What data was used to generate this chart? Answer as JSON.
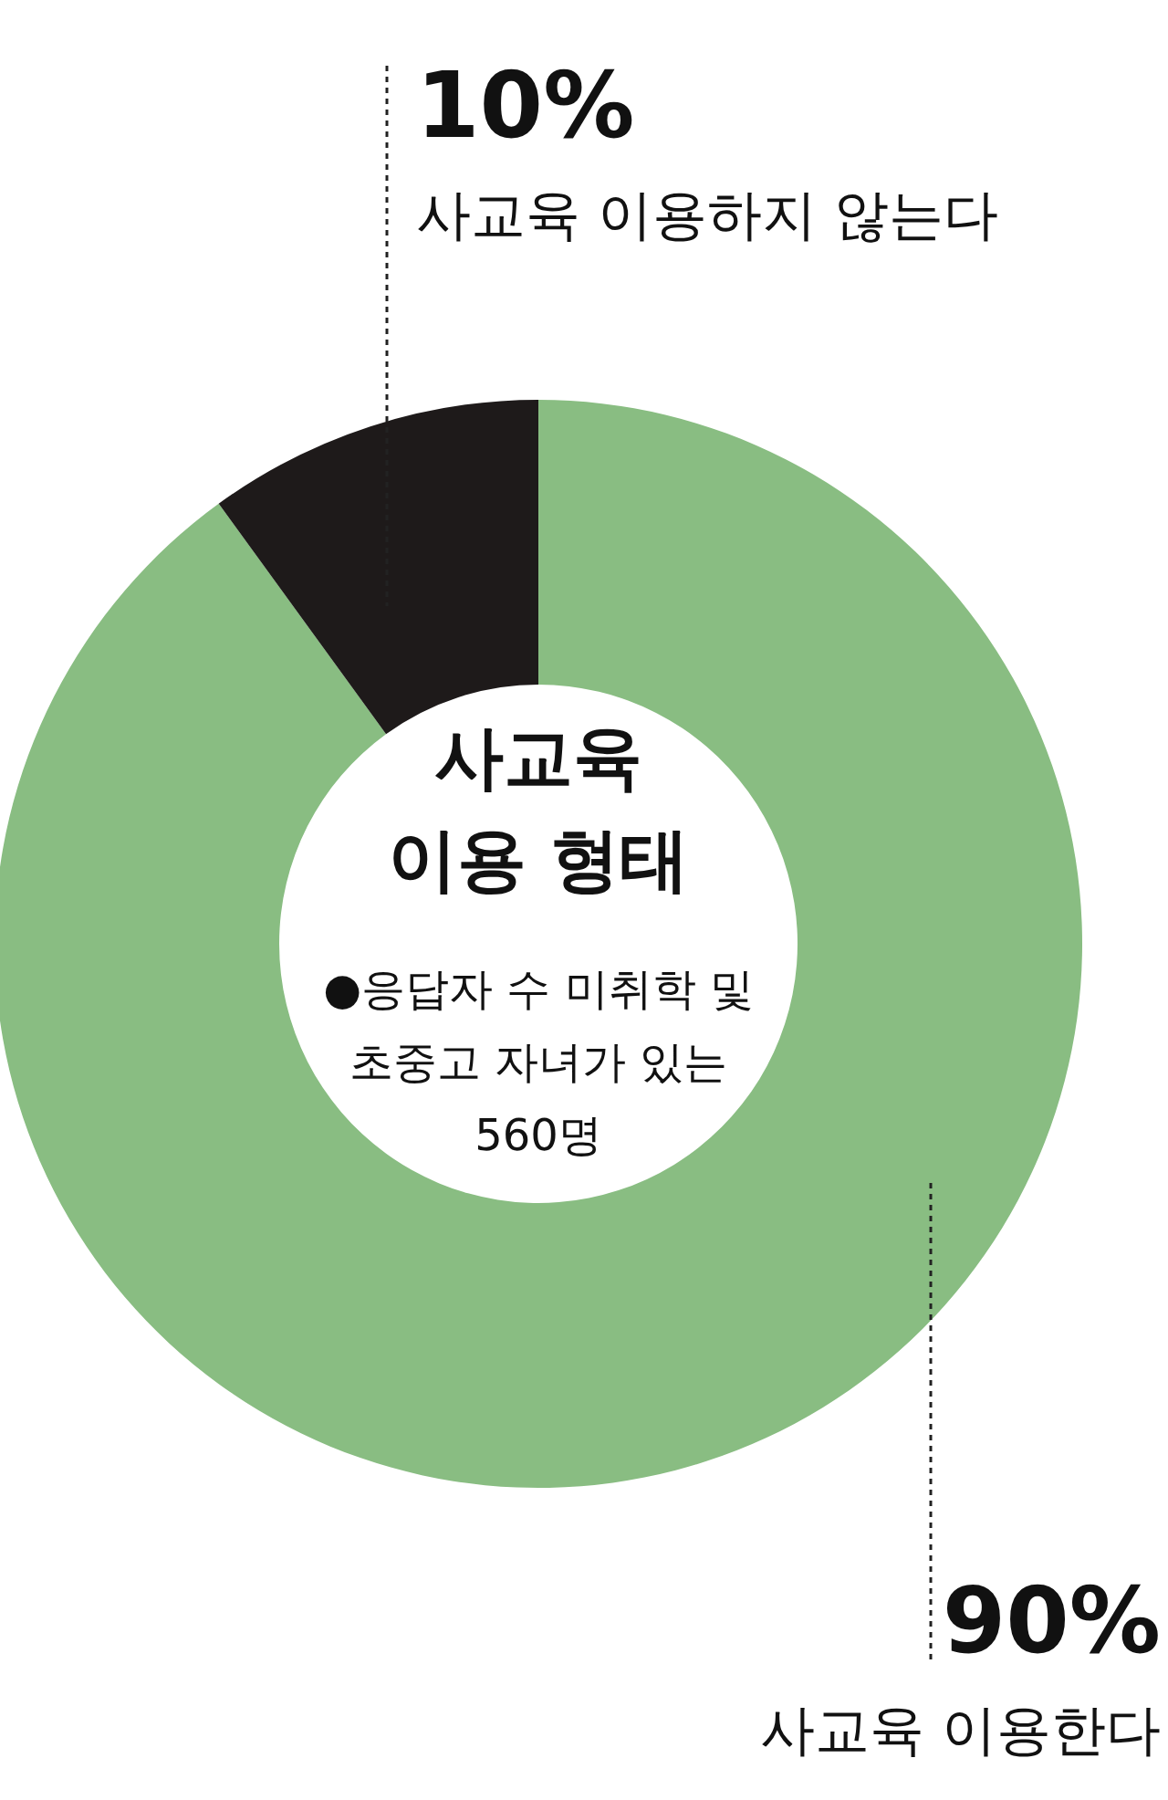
{
  "chart_data": {
    "type": "donut",
    "title": "사교육\n이용 형태",
    "categories": [
      "사교육 이용한다",
      "사교육 이용하지 않는다"
    ],
    "values": [
      90,
      10
    ],
    "colors": [
      "#89bd82",
      "#1e1a1a"
    ],
    "value_labels": [
      "90%",
      "10%"
    ],
    "annotations": [
      "●응답자 수  미취학 및\n초중고 자녀가 있는\n560명"
    ]
  }
}
